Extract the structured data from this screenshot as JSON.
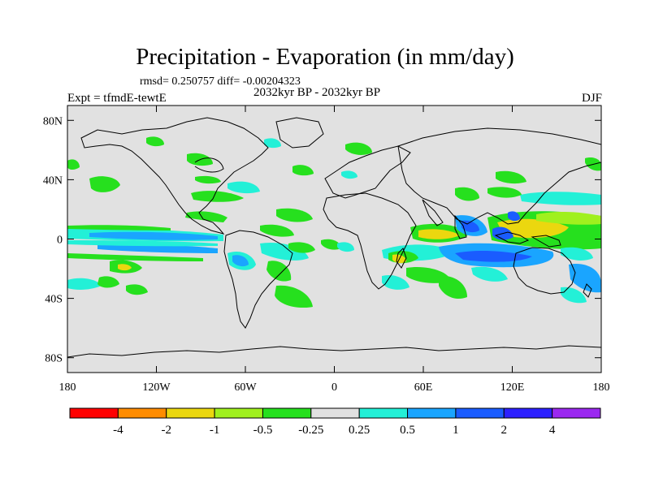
{
  "figure": {
    "title": "Precipitation - Evaporation (in mm/day)",
    "stats_text": "rmsd= 0.250757 diff= -0.00204323",
    "period_text": "2032kyr BP - 2032kyr BP",
    "expt_text": "Expt = tfmdE-tewtE",
    "season_text": "DJF"
  },
  "map": {
    "projection": "cylindrical-equidistant",
    "lon_range": [
      -180,
      180
    ],
    "lat_range": [
      -90,
      90
    ],
    "lon_ticks": [
      {
        "value": -180,
        "label": "180"
      },
      {
        "value": -120,
        "label": "120W"
      },
      {
        "value": -60,
        "label": "60W"
      },
      {
        "value": 0,
        "label": "0"
      },
      {
        "value": 60,
        "label": "60E"
      },
      {
        "value": 120,
        "label": "120E"
      },
      {
        "value": 180,
        "label": "180"
      }
    ],
    "lat_ticks": [
      {
        "value": 80,
        "label": "80N"
      },
      {
        "value": 40,
        "label": "40N"
      },
      {
        "value": 0,
        "label": "0"
      },
      {
        "value": -40,
        "label": "40S"
      },
      {
        "value": -80,
        "label": "80S"
      }
    ]
  },
  "colorbar": {
    "colors": [
      "#ff0000",
      "#ff8c00",
      "#ebd70f",
      "#a0f01e",
      "#26e01e",
      "#e1e1e1",
      "#23f0d7",
      "#1aa5ff",
      "#1a5cff",
      "#2c20ff",
      "#9b28f0"
    ],
    "labels": [
      "-4",
      "-2",
      "-1",
      "-0.5",
      "-0.25",
      "0.25",
      "0.5",
      "1",
      "2",
      "4"
    ]
  },
  "colors": {
    "background_field": "#e1e1e1",
    "coastline": "#000000"
  }
}
